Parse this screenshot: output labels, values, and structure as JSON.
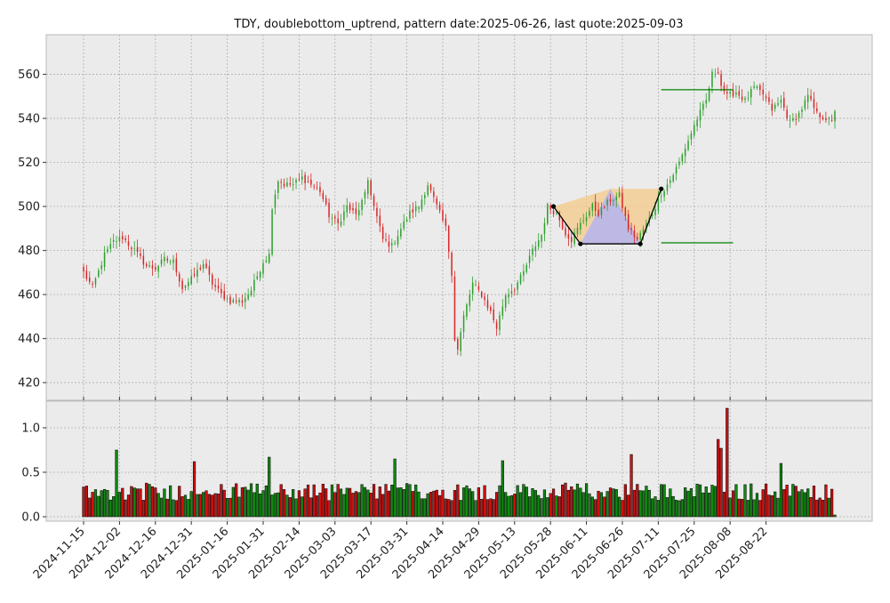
{
  "chart_data": [
    {
      "type": "candlestick",
      "title": "TDY, doublebottom_uptrend, pattern date:2025-06-26, last quote:2025-09-03",
      "ticker": "TDY",
      "pattern": "doublebottom_uptrend",
      "pattern_date": "2025-06-26",
      "last_quote": "2025-09-03",
      "xlim": [
        "2024-11-15",
        "2025-09-03"
      ],
      "ylim": [
        412,
        578
      ],
      "yticks": [
        420,
        440,
        460,
        480,
        500,
        520,
        540,
        560
      ],
      "xticks": [
        "2024-11-15",
        "2024-12-02",
        "2024-12-16",
        "2024-12-31",
        "2025-01-16",
        "2025-01-31",
        "2025-02-14",
        "2025-03-03",
        "2025-03-17",
        "2025-03-31",
        "2025-04-14",
        "2025-04-29",
        "2025-05-13",
        "2025-05-28",
        "2025-06-11",
        "2025-06-26",
        "2025-07-11",
        "2025-07-25",
        "2025-08-08",
        "2025-08-22"
      ],
      "grid": true,
      "close_anchors": [
        {
          "x": 0,
          "y": 470
        },
        {
          "x": 3,
          "y": 463
        },
        {
          "x": 7,
          "y": 478
        },
        {
          "x": 10,
          "y": 484
        },
        {
          "x": 13,
          "y": 486
        },
        {
          "x": 17,
          "y": 480
        },
        {
          "x": 21,
          "y": 473
        },
        {
          "x": 24,
          "y": 472
        },
        {
          "x": 27,
          "y": 476
        },
        {
          "x": 30,
          "y": 475
        },
        {
          "x": 33,
          "y": 463
        },
        {
          "x": 36,
          "y": 467
        },
        {
          "x": 40,
          "y": 474
        },
        {
          "x": 43,
          "y": 465
        },
        {
          "x": 46,
          "y": 460
        },
        {
          "x": 49,
          "y": 457
        },
        {
          "x": 53,
          "y": 457
        },
        {
          "x": 56,
          "y": 462
        },
        {
          "x": 60,
          "y": 475
        },
        {
          "x": 62,
          "y": 478
        },
        {
          "x": 63,
          "y": 500
        },
        {
          "x": 65,
          "y": 512
        },
        {
          "x": 67,
          "y": 510
        },
        {
          "x": 70,
          "y": 510
        },
        {
          "x": 73,
          "y": 513
        },
        {
          "x": 76,
          "y": 510
        },
        {
          "x": 79,
          "y": 507
        },
        {
          "x": 82,
          "y": 496
        },
        {
          "x": 85,
          "y": 492
        },
        {
          "x": 88,
          "y": 500
        },
        {
          "x": 91,
          "y": 496
        },
        {
          "x": 94,
          "y": 505
        },
        {
          "x": 95,
          "y": 512
        },
        {
          "x": 97,
          "y": 500
        },
        {
          "x": 100,
          "y": 485
        },
        {
          "x": 103,
          "y": 482
        },
        {
          "x": 106,
          "y": 490
        },
        {
          "x": 109,
          "y": 497
        },
        {
          "x": 112,
          "y": 500
        },
        {
          "x": 115,
          "y": 510
        },
        {
          "x": 118,
          "y": 500
        },
        {
          "x": 121,
          "y": 490
        },
        {
          "x": 123,
          "y": 470
        },
        {
          "x": 124,
          "y": 440
        },
        {
          "x": 125,
          "y": 435
        },
        {
          "x": 127,
          "y": 450
        },
        {
          "x": 130,
          "y": 465
        },
        {
          "x": 133,
          "y": 460
        },
        {
          "x": 136,
          "y": 452
        },
        {
          "x": 138,
          "y": 445
        },
        {
          "x": 141,
          "y": 460
        },
        {
          "x": 144,
          "y": 463
        },
        {
          "x": 147,
          "y": 470
        },
        {
          "x": 150,
          "y": 480
        },
        {
          "x": 153,
          "y": 487
        },
        {
          "x": 155,
          "y": 500
        },
        {
          "x": 158,
          "y": 497
        },
        {
          "x": 161,
          "y": 488
        },
        {
          "x": 163,
          "y": 485
        },
        {
          "x": 166,
          "y": 492
        },
        {
          "x": 170,
          "y": 500
        },
        {
          "x": 172,
          "y": 497
        },
        {
          "x": 176,
          "y": 503
        },
        {
          "x": 179,
          "y": 505
        },
        {
          "x": 182,
          "y": 490
        },
        {
          "x": 185,
          "y": 485
        },
        {
          "x": 188,
          "y": 492
        },
        {
          "x": 190,
          "y": 497
        },
        {
          "x": 193,
          "y": 506
        },
        {
          "x": 196,
          "y": 512
        },
        {
          "x": 199,
          "y": 520
        },
        {
          "x": 202,
          "y": 530
        },
        {
          "x": 205,
          "y": 540
        },
        {
          "x": 208,
          "y": 548
        },
        {
          "x": 210,
          "y": 560
        },
        {
          "x": 212,
          "y": 562
        },
        {
          "x": 213,
          "y": 555
        },
        {
          "x": 215,
          "y": 550
        },
        {
          "x": 218,
          "y": 552
        },
        {
          "x": 221,
          "y": 548
        },
        {
          "x": 224,
          "y": 554
        },
        {
          "x": 227,
          "y": 551
        },
        {
          "x": 230,
          "y": 544
        },
        {
          "x": 233,
          "y": 548
        },
        {
          "x": 236,
          "y": 538
        },
        {
          "x": 239,
          "y": 542
        },
        {
          "x": 242,
          "y": 550
        },
        {
          "x": 245,
          "y": 542
        },
        {
          "x": 248,
          "y": 540
        },
        {
          "x": 250,
          "y": 538
        },
        {
          "x": 251,
          "y": 544
        }
      ],
      "volume_ylim": [
        0,
        1.3
      ],
      "volume_yticks": [
        "0.0",
        "0.5",
        "1.0"
      ],
      "volume_spikes": [
        {
          "x": 11,
          "v": 0.75
        },
        {
          "x": 37,
          "v": 0.62
        },
        {
          "x": 62,
          "v": 0.67
        },
        {
          "x": 104,
          "v": 0.65
        },
        {
          "x": 140,
          "v": 0.63
        },
        {
          "x": 183,
          "v": 0.7
        },
        {
          "x": 212,
          "v": 0.87
        },
        {
          "x": 215,
          "v": 1.22
        },
        {
          "x": 213,
          "v": 0.77
        },
        {
          "x": 233,
          "v": 0.6
        }
      ],
      "pattern_points": [
        {
          "x": 157,
          "y": 500
        },
        {
          "x": 166,
          "y": 483
        },
        {
          "x": 186,
          "y": 483
        },
        {
          "x": 193,
          "y": 508
        }
      ],
      "shaded_region_top": 508,
      "shaded_region_bottom": 483,
      "target_lines": [
        {
          "y": 553,
          "x_from": 193,
          "x_to": 217
        },
        {
          "y": 483.5,
          "x_from": 193,
          "x_to": 217
        }
      ],
      "colors": {
        "up": "#2ca02c",
        "down": "#d62728",
        "up_vol": "#118811",
        "down_vol": "#cc1111",
        "pattern_line": "#000000",
        "target_line": "#008000",
        "fill_orange": "#f5c98a",
        "fill_blue": "#b4b4f0",
        "axes_bg": "#ebebeb",
        "grid": "#b0b0b0"
      }
    }
  ]
}
